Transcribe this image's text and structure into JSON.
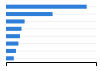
{
  "chart_data": {
    "type": "bar",
    "orientation": "horizontal",
    "categories": [
      null,
      null,
      null,
      null,
      null,
      null,
      null,
      null
    ],
    "values": [
      26.0,
      15.0,
      6.0,
      5.0,
      4.5,
      4.0,
      3.2,
      2.5
    ],
    "color": "#2f7ed8",
    "xlim": [
      0,
      29
    ],
    "grid": true,
    "tick_labels": false
  }
}
